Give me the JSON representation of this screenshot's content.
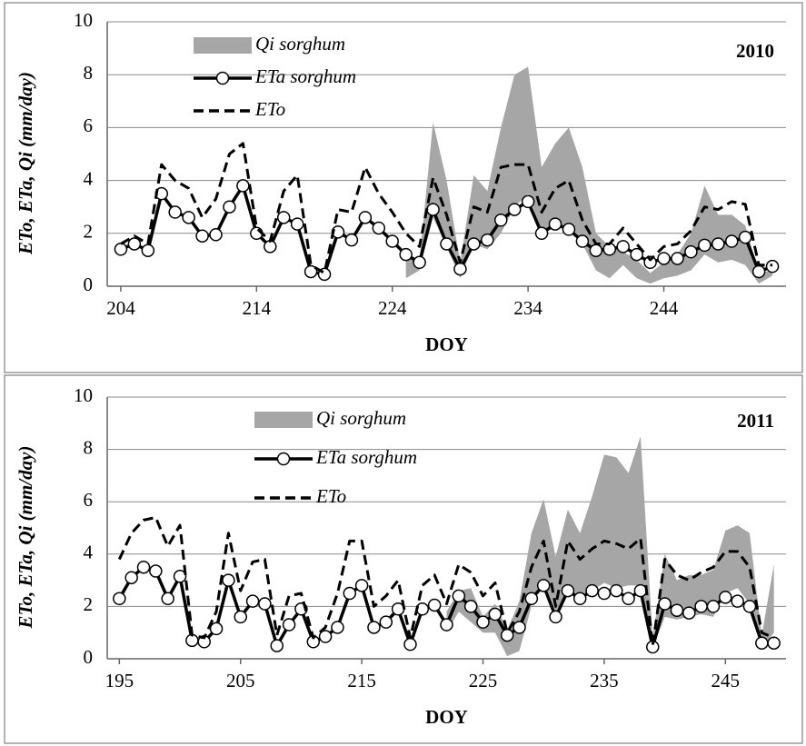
{
  "chart_data": [
    {
      "type": "line",
      "annotation": "2010",
      "xlabel": "DOY",
      "ylabel": "ETo, ETa, Qi (mm/day)",
      "grid": true,
      "legend": "upper-left",
      "xlim": [
        203,
        253
      ],
      "xticks": [
        204,
        214,
        224,
        234,
        244
      ],
      "ylim": [
        0,
        10
      ],
      "yticks": [
        0,
        2,
        4,
        6,
        8,
        10
      ],
      "x": [
        204,
        205,
        206,
        207,
        208,
        209,
        210,
        211,
        212,
        213,
        214,
        215,
        216,
        217,
        218,
        219,
        220,
        221,
        222,
        223,
        224,
        225,
        226,
        227,
        228,
        229,
        230,
        231,
        232,
        233,
        234,
        235,
        236,
        237,
        238,
        239,
        240,
        241,
        242,
        243,
        244,
        245,
        246,
        247,
        248,
        249,
        250,
        251,
        252
      ],
      "series": [
        {
          "name": "Qi sorghum",
          "color": "#a6a6a6",
          "style": "band",
          "low": [
            null,
            null,
            null,
            null,
            null,
            null,
            null,
            null,
            null,
            null,
            null,
            null,
            null,
            null,
            null,
            null,
            null,
            null,
            null,
            null,
            null,
            0.3,
            0.6,
            2.6,
            1.5,
            0.3,
            1.6,
            1.4,
            2.0,
            3.0,
            3.5,
            2.0,
            2.2,
            2.2,
            1.6,
            0.6,
            0.3,
            0.8,
            0.3,
            0.1,
            0.3,
            0.4,
            0.6,
            1.2,
            0.9,
            1.0,
            0.8,
            0.1,
            0.4
          ],
          "high": [
            null,
            null,
            null,
            null,
            null,
            null,
            null,
            null,
            null,
            null,
            null,
            null,
            null,
            null,
            null,
            null,
            null,
            null,
            null,
            null,
            null,
            1.2,
            1.0,
            6.2,
            4.0,
            0.9,
            4.2,
            3.6,
            6.0,
            8.0,
            8.3,
            4.5,
            5.4,
            6.0,
            4.5,
            2.0,
            1.5,
            1.3,
            1.0,
            0.5,
            0.9,
            1.2,
            2.0,
            3.8,
            2.7,
            2.7,
            2.3,
            0.5,
            0.6
          ]
        },
        {
          "name": "ETa sorghum",
          "color": "#000000",
          "style": "line",
          "marker": "circle",
          "values": [
            1.4,
            1.6,
            1.35,
            3.5,
            2.8,
            2.6,
            1.9,
            1.95,
            3.0,
            3.8,
            2.0,
            1.5,
            2.6,
            2.35,
            0.55,
            0.45,
            2.05,
            1.75,
            2.6,
            2.2,
            1.7,
            1.2,
            0.9,
            2.9,
            1.6,
            0.65,
            1.6,
            1.75,
            2.5,
            2.9,
            3.2,
            2.0,
            2.35,
            2.15,
            1.7,
            1.35,
            1.4,
            1.5,
            1.2,
            0.9,
            1.05,
            1.05,
            1.3,
            1.55,
            1.6,
            1.7,
            1.85,
            0.55,
            0.75
          ]
        },
        {
          "name": "ETo",
          "color": "#000000",
          "style": "line",
          "dashed": true,
          "values": [
            1.6,
            1.9,
            1.6,
            4.6,
            4.0,
            3.7,
            2.6,
            3.3,
            5.0,
            5.4,
            2.2,
            1.7,
            3.6,
            4.2,
            0.8,
            0.5,
            2.9,
            2.8,
            4.5,
            3.5,
            2.8,
            2.0,
            1.5,
            4.1,
            2.7,
            0.9,
            3.0,
            2.8,
            4.5,
            4.6,
            4.6,
            2.8,
            3.7,
            4.0,
            2.5,
            1.6,
            1.6,
            2.2,
            1.6,
            1.0,
            1.5,
            1.6,
            2.1,
            3.0,
            2.9,
            3.2,
            3.1,
            0.8,
            0.8
          ]
        }
      ]
    },
    {
      "type": "line",
      "annotation": "2011",
      "xlabel": "DOY",
      "ylabel": "ETo, ETa, Qi (mm/day)",
      "grid": true,
      "legend": "upper-left",
      "xlim": [
        194,
        250
      ],
      "xticks": [
        195,
        205,
        215,
        225,
        235,
        245
      ],
      "ylim": [
        0,
        10
      ],
      "yticks": [
        0,
        2,
        4,
        6,
        8,
        10
      ],
      "x": [
        195,
        196,
        197,
        198,
        199,
        200,
        201,
        202,
        203,
        204,
        205,
        206,
        207,
        208,
        209,
        210,
        211,
        212,
        213,
        214,
        215,
        216,
        217,
        218,
        219,
        220,
        221,
        222,
        223,
        224,
        225,
        226,
        227,
        228,
        229,
        230,
        231,
        232,
        233,
        234,
        235,
        236,
        237,
        238,
        239,
        240,
        241,
        242,
        243,
        244,
        245,
        246,
        247,
        248,
        249
      ],
      "series": [
        {
          "name": "Qi sorghum",
          "color": "#a6a6a6",
          "style": "band",
          "low": [
            null,
            null,
            null,
            null,
            null,
            null,
            null,
            null,
            null,
            null,
            null,
            null,
            null,
            null,
            null,
            null,
            null,
            null,
            null,
            null,
            null,
            null,
            null,
            null,
            null,
            null,
            null,
            1.0,
            1.8,
            1.4,
            1.0,
            1.0,
            0.1,
            0.3,
            2.0,
            3.0,
            1.8,
            2.6,
            2.3,
            2.6,
            2.9,
            2.7,
            2.8,
            2.8,
            0.4,
            1.6,
            1.5,
            1.6,
            1.7,
            1.6,
            2.5,
            2.7,
            2.1,
            0.4,
            1.0
          ],
          "high": [
            null,
            null,
            null,
            null,
            null,
            null,
            null,
            null,
            null,
            null,
            null,
            null,
            null,
            null,
            null,
            null,
            null,
            null,
            null,
            null,
            null,
            null,
            null,
            null,
            null,
            null,
            null,
            1.8,
            2.6,
            2.7,
            1.6,
            2.1,
            1.1,
            2.2,
            4.8,
            6.1,
            3.9,
            5.7,
            4.8,
            6.2,
            7.8,
            7.7,
            7.1,
            8.5,
            0.8,
            4.0,
            3.0,
            3.2,
            3.2,
            3.4,
            4.9,
            5.1,
            4.8,
            0.9,
            3.6
          ]
        },
        {
          "name": "ETa sorghum",
          "color": "#000000",
          "style": "line",
          "marker": "circle",
          "values": [
            2.3,
            3.1,
            3.5,
            3.35,
            2.3,
            3.15,
            0.7,
            0.65,
            1.15,
            3.0,
            1.6,
            2.2,
            2.1,
            0.5,
            1.3,
            1.9,
            0.65,
            0.85,
            1.2,
            2.5,
            2.8,
            1.2,
            1.4,
            1.9,
            0.55,
            1.9,
            2.05,
            1.3,
            2.4,
            2.0,
            1.4,
            1.7,
            0.9,
            1.2,
            2.3,
            2.8,
            1.6,
            2.6,
            2.3,
            2.6,
            2.5,
            2.6,
            2.3,
            2.6,
            0.45,
            2.1,
            1.85,
            1.75,
            2.0,
            2.0,
            2.35,
            2.2,
            2.0,
            0.6,
            0.6
          ]
        },
        {
          "name": "ETo",
          "color": "#000000",
          "style": "line",
          "dashed": true,
          "values": [
            3.8,
            4.8,
            5.3,
            5.4,
            4.3,
            5.1,
            0.9,
            0.8,
            1.8,
            4.8,
            2.6,
            3.7,
            3.8,
            0.9,
            2.4,
            2.5,
            0.8,
            1.2,
            2.5,
            4.5,
            4.5,
            2.0,
            2.4,
            3.0,
            0.8,
            2.8,
            3.2,
            2.1,
            3.6,
            3.3,
            2.4,
            2.9,
            1.0,
            1.8,
            3.5,
            4.5,
            2.0,
            4.5,
            3.8,
            4.2,
            4.5,
            4.4,
            4.2,
            4.6,
            0.5,
            3.8,
            3.2,
            3.0,
            3.3,
            3.5,
            4.1,
            4.1,
            3.5,
            1.0,
            0.8
          ]
        }
      ]
    }
  ]
}
